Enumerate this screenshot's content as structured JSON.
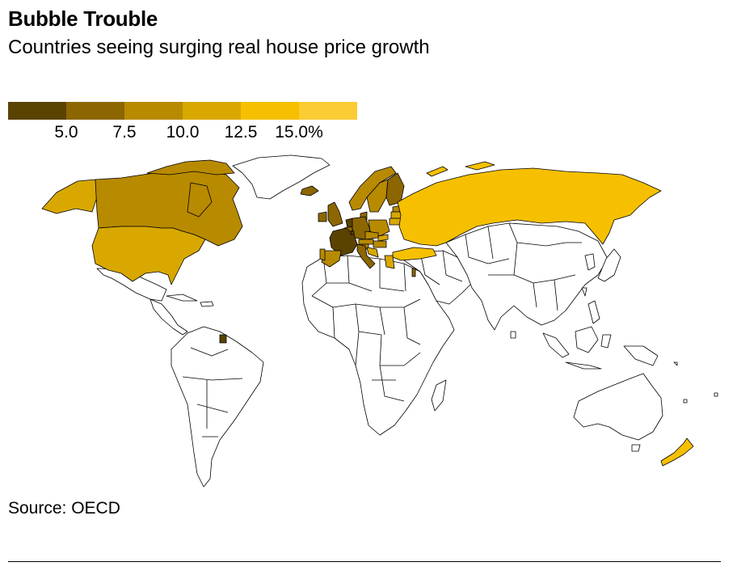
{
  "header": {
    "title": "Bubble Trouble",
    "subtitle": "Countries seeing surging real house price growth"
  },
  "legend": {
    "colors": [
      "#5a4200",
      "#8c6600",
      "#b88a00",
      "#d8a800",
      "#f6c000",
      "#fbcc33"
    ],
    "ticks": [
      "5.0",
      "7.5",
      "10.0",
      "12.5",
      "15.0%"
    ]
  },
  "footer": {
    "source": "Source: OECD"
  },
  "map_data": {
    "regions": [
      {
        "name": "Canada",
        "color": "#b88a00"
      },
      {
        "name": "United States",
        "color": "#d8a800"
      },
      {
        "name": "Alaska",
        "color": "#d8a800"
      },
      {
        "name": "Russia",
        "color": "#f6c000"
      },
      {
        "name": "Turkey",
        "color": "#f6c000"
      },
      {
        "name": "New Zealand",
        "color": "#f6c000"
      },
      {
        "name": "France",
        "color": "#5a4200"
      },
      {
        "name": "Germany",
        "color": "#8c6600"
      },
      {
        "name": "Poland",
        "color": "#b88a00"
      },
      {
        "name": "Sweden",
        "color": "#b88a00"
      },
      {
        "name": "Norway",
        "color": "#b88a00"
      },
      {
        "name": "Finland",
        "color": "#8c6600"
      },
      {
        "name": "Iceland",
        "color": "#8c6600"
      },
      {
        "name": "United Kingdom",
        "color": "#8c6600"
      },
      {
        "name": "Ireland",
        "color": "#8c6600"
      },
      {
        "name": "Portugal",
        "color": "#b88a00"
      },
      {
        "name": "Italy",
        "color": "#8c6600"
      },
      {
        "name": "Austria",
        "color": "#b88a00"
      },
      {
        "name": "Denmark",
        "color": "#8c6600"
      },
      {
        "name": "Czechia",
        "color": "#b88a00"
      },
      {
        "name": "Lithuania",
        "color": "#d8a800"
      },
      {
        "name": "Latvia",
        "color": "#d8a800"
      },
      {
        "name": "Estonia",
        "color": "#b88a00"
      },
      {
        "name": "Hungary",
        "color": "#b88a00"
      },
      {
        "name": "Slovakia",
        "color": "#d8a800"
      },
      {
        "name": "Slovenia",
        "color": "#b88a00"
      },
      {
        "name": "Croatia",
        "color": "#d8a800"
      },
      {
        "name": "Greece",
        "color": "#d8a800"
      },
      {
        "name": "Netherlands",
        "color": "#5a4200"
      },
      {
        "name": "Belgium",
        "color": "#8c6600"
      },
      {
        "name": "Spain",
        "color": "#b88a00"
      },
      {
        "name": "Israel",
        "color": "#8c6600"
      },
      {
        "name": "Luxembourg",
        "color": "#5a4200"
      },
      {
        "name": "French Guiana",
        "color": "#5a4200"
      }
    ]
  }
}
